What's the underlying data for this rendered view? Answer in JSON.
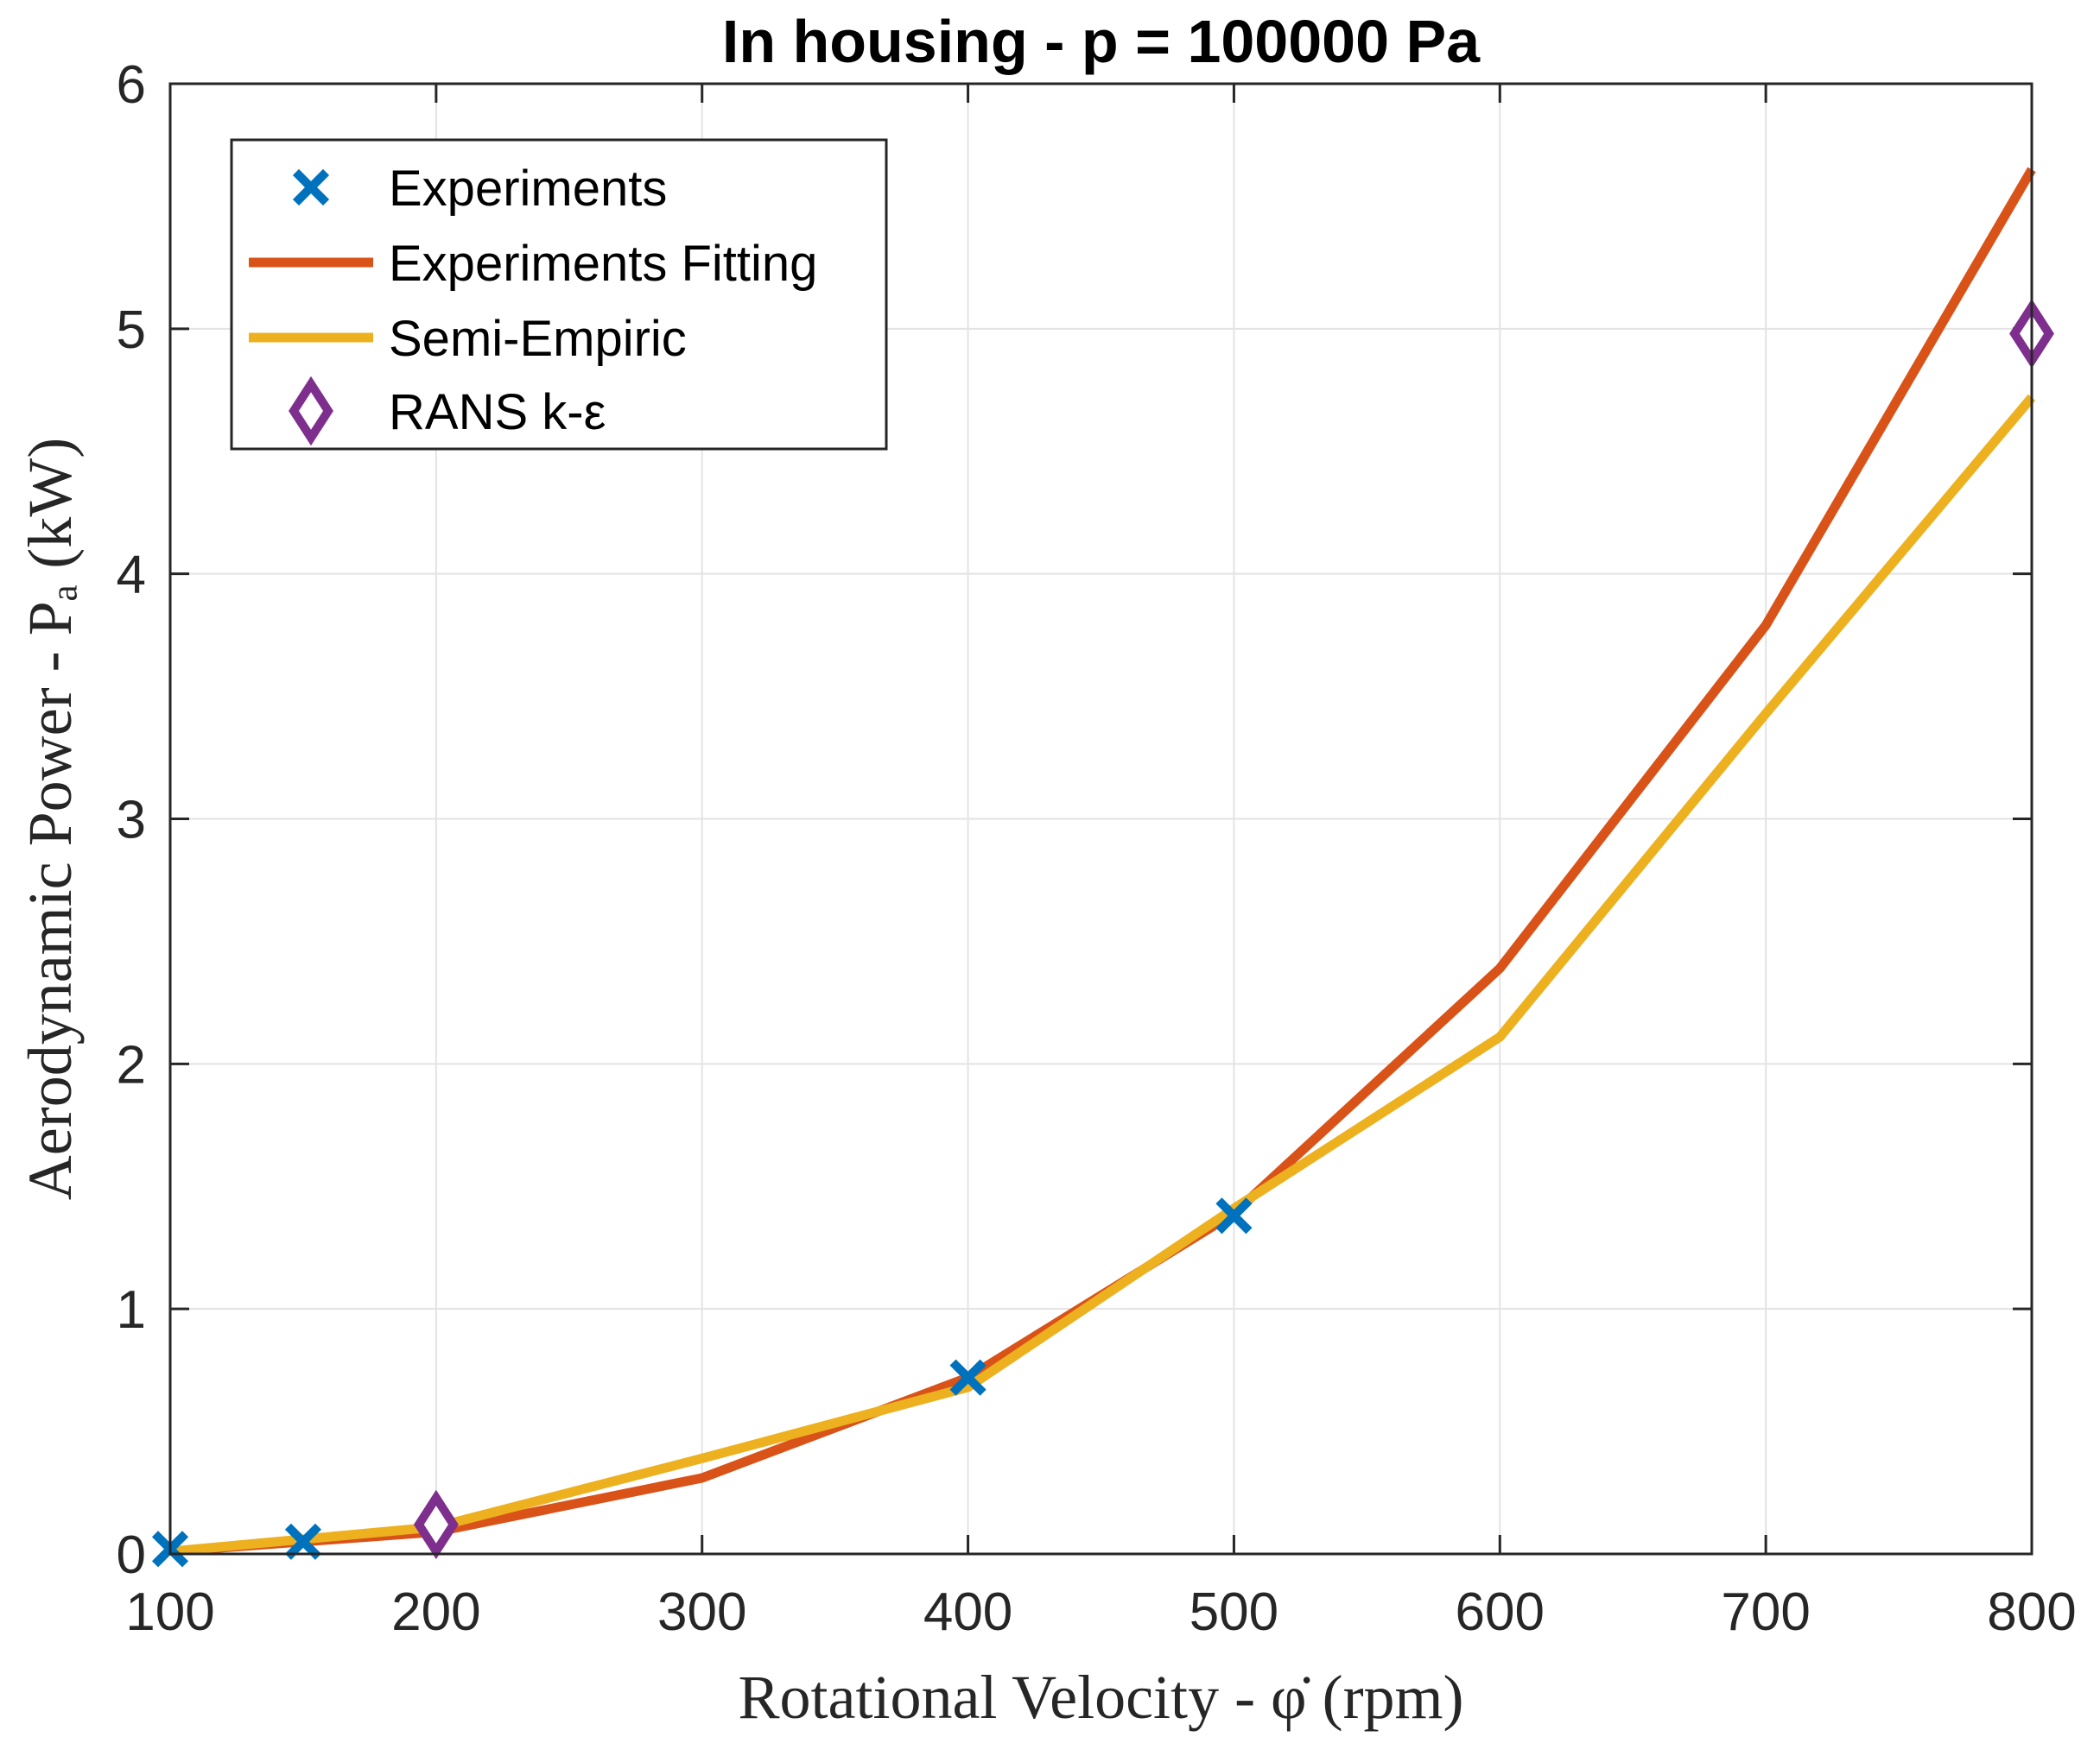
{
  "chart_data": {
    "type": "line",
    "title": "In housing - p = 100000 Pa",
    "xlabel": "Rotational Velocity - φ̇ (rpm)",
    "ylabel": "Aerodynamic Power - Pₐ (kW)",
    "xlim": [
      100,
      800
    ],
    "ylim": [
      0,
      6
    ],
    "xticks": [
      100,
      200,
      300,
      400,
      500,
      600,
      700,
      800
    ],
    "yticks": [
      0,
      1,
      2,
      3,
      4,
      5,
      6
    ],
    "grid": true,
    "legend_position": "top-left",
    "series": [
      {
        "name": "Experiments",
        "kind": "marker",
        "marker": "x",
        "color": "#0072BD",
        "x": [
          100,
          150,
          400,
          500
        ],
        "y": [
          0.02,
          0.05,
          0.72,
          1.38
        ]
      },
      {
        "name": "Experiments Fitting",
        "kind": "line",
        "color": "#D95319",
        "x": [
          100,
          200,
          300,
          400,
          500,
          600,
          700,
          800
        ],
        "y": [
          0.01,
          0.09,
          0.31,
          0.72,
          1.39,
          2.39,
          3.79,
          5.65
        ]
      },
      {
        "name": "Semi-Empiric",
        "kind": "line",
        "color": "#EDB120",
        "x": [
          100,
          200,
          300,
          400,
          500,
          600,
          700,
          800
        ],
        "y": [
          0.01,
          0.11,
          0.39,
          0.68,
          1.41,
          2.11,
          3.43,
          4.72
        ]
      },
      {
        "name": "RANS k-ε",
        "kind": "marker",
        "marker": "diamond",
        "color": "#7E2F8E",
        "x": [
          200,
          800
        ],
        "y": [
          0.12,
          4.98
        ]
      }
    ]
  }
}
